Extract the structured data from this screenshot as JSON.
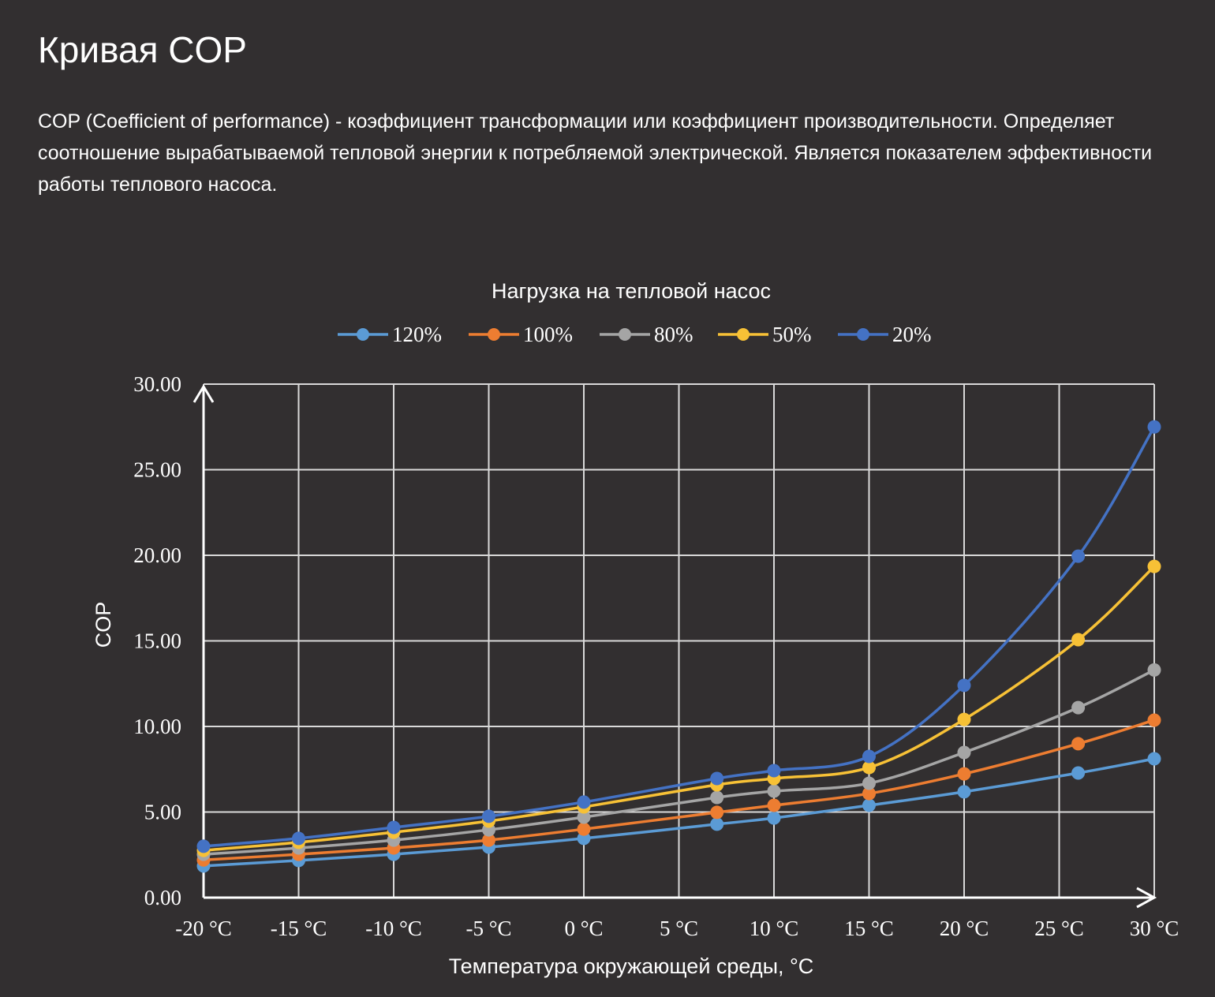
{
  "page": {
    "title": "Кривая COP",
    "description": "COP (Coefficient of performance) - коэффициент трансформации или коэффициент производительности. Определяет соотношение вырабатываемой тепловой энергии к потребляемой электрической. Является показателем эффективности работы теплового насоса."
  },
  "chart_data": {
    "type": "line",
    "title": "Нагрузка на тепловой насос",
    "xlabel": "Температура окружающей среды, °C",
    "ylabel": "COP",
    "xlim": [
      -20,
      30
    ],
    "ylim": [
      0,
      30
    ],
    "grid": true,
    "legend_position": "top",
    "x_ticks": [
      -20,
      -15,
      -10,
      -5,
      0,
      5,
      10,
      15,
      20,
      25,
      30
    ],
    "x_tick_labels": [
      "-20 °C",
      "-15 °C",
      "-10 °C",
      "-5 °C",
      "0 °C",
      "5 °C",
      "10 °C",
      "15 °C",
      "20 °C",
      "25 °C",
      "30 °C"
    ],
    "y_ticks": [
      0,
      5,
      10,
      15,
      20,
      25,
      30
    ],
    "y_tick_labels": [
      "0.00",
      "5.00",
      "10.00",
      "15.00",
      "20.00",
      "25.00",
      "30.00"
    ],
    "x": [
      -20,
      -15,
      -10,
      -5,
      0,
      7,
      10,
      15,
      20,
      26,
      30
    ],
    "series": [
      {
        "name": "120%",
        "color": "#5b9bd5",
        "values": [
          1.85,
          2.17,
          2.53,
          2.95,
          3.46,
          4.29,
          4.65,
          5.39,
          6.18,
          7.28,
          8.11
        ]
      },
      {
        "name": "100%",
        "color": "#ed7d31",
        "values": [
          2.2,
          2.53,
          2.9,
          3.36,
          4.0,
          4.98,
          5.39,
          6.08,
          7.23,
          8.99,
          10.37
        ]
      },
      {
        "name": "80%",
        "color": "#a5a5a5",
        "values": [
          2.53,
          2.9,
          3.36,
          3.96,
          4.7,
          5.85,
          6.22,
          6.68,
          8.48,
          11.1,
          13.3
        ]
      },
      {
        "name": "50%",
        "color": "#f7c136",
        "values": [
          2.76,
          3.23,
          3.82,
          4.47,
          5.3,
          6.59,
          6.96,
          7.6,
          10.41,
          15.07,
          19.35
        ]
      },
      {
        "name": "20%",
        "color": "#4472c4",
        "values": [
          3.0,
          3.46,
          4.1,
          4.75,
          5.58,
          6.96,
          7.42,
          8.25,
          12.4,
          19.95,
          27.5
        ]
      }
    ]
  }
}
